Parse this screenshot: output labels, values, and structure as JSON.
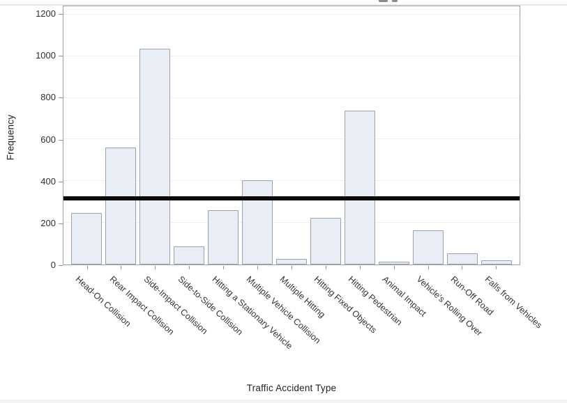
{
  "chart_data": {
    "type": "bar",
    "categories": [
      "Head-On Collision",
      "Rear Impact Collision",
      "Side-Impact Collision",
      "Side-to-Side Collision",
      "Hitting a Stationary Vehicle",
      "Multiple Vehicle Collision",
      "Multiple Hitting",
      "Hitting Fixed Objects",
      "Hitting Pedestrian",
      "Animal Impact",
      "Vehicle's Rolling Over",
      "Run-Off Road",
      "Falls from Vehicles"
    ],
    "values": [
      248,
      560,
      1035,
      88,
      260,
      403,
      26,
      225,
      740,
      14,
      165,
      52,
      20
    ],
    "reference_line_y": 318,
    "xlabel": "Traffic Accident Type",
    "ylabel": "Frequency",
    "yticks": [
      0,
      200,
      400,
      600,
      800,
      1000,
      1200
    ],
    "ylim": [
      0,
      1240
    ],
    "grid": "horizontal",
    "legend": "none",
    "colors": {
      "bar_fill": "#e9edf5",
      "bar_border": "#99a1ab",
      "gridline": "#efefef",
      "frame_border": "#999fa6",
      "reference_line": "#0a0a0a",
      "axis_text": "#333333"
    }
  }
}
